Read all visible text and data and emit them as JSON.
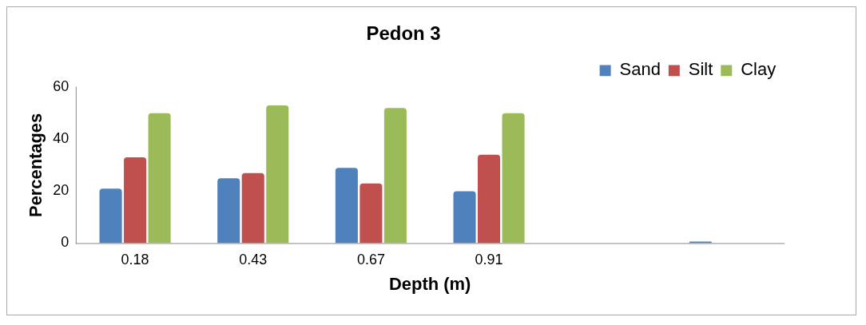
{
  "chart_data": {
    "type": "bar",
    "title": "Pedon 3",
    "xlabel": "Depth (m)",
    "ylabel": "Percentages",
    "categories": [
      "0.18",
      "0.43",
      "0.67",
      "0.91",
      null,
      null
    ],
    "series": [
      {
        "name": "Sand",
        "color": "#4f81bd",
        "values": [
          21,
          25,
          29,
          20,
          null,
          0
        ]
      },
      {
        "name": "Silt",
        "color": "#c0504d",
        "values": [
          33,
          27,
          23,
          34,
          null,
          null
        ]
      },
      {
        "name": "Clay",
        "color": "#9bbb59",
        "values": [
          50,
          53,
          52,
          50,
          null,
          null
        ]
      }
    ],
    "ylim": [
      0,
      60
    ],
    "yticks": [
      0,
      20,
      40,
      60
    ],
    "grid": false,
    "legend": "top right"
  }
}
